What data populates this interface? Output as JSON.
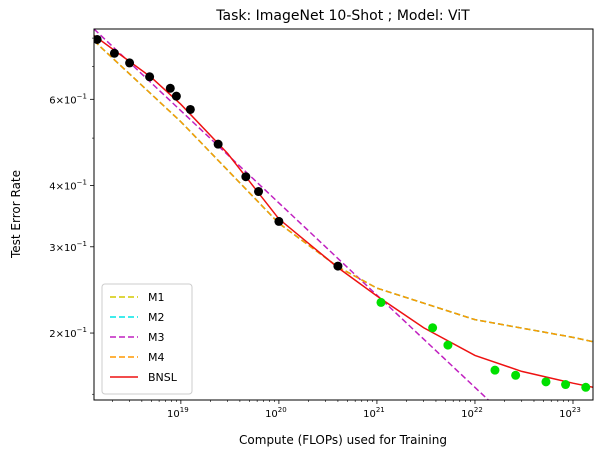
{
  "chart_data": {
    "type": "line",
    "title": "Task: ImageNet 10-Shot ; Model: ViT",
    "xlabel": "Compute (FLOPs) used for Training",
    "ylabel": "Test Error Rate",
    "x_scale": "log",
    "y_scale": "log",
    "xlim": [
      1.3e+18,
      1.6e+23
    ],
    "ylim": [
      0.146,
      0.835
    ],
    "x_ticks": [
      {
        "value": 1e+19,
        "base": "10",
        "exp": "19"
      },
      {
        "value": 1e+20,
        "base": "10",
        "exp": "20"
      },
      {
        "value": 1e+21,
        "base": "10",
        "exp": "21"
      },
      {
        "value": 1e+22,
        "base": "10",
        "exp": "22"
      },
      {
        "value": 1e+23,
        "base": "10",
        "exp": "23"
      }
    ],
    "y_ticks": [
      {
        "value": 0.2,
        "mant": "2",
        "base": "10",
        "exp": "−1"
      },
      {
        "value": 0.3,
        "mant": "3",
        "base": "10",
        "exp": "−1"
      },
      {
        "value": 0.4,
        "mant": "4",
        "base": "10",
        "exp": "−1"
      },
      {
        "value": 0.6,
        "mant": "6",
        "base": "10",
        "exp": "−1"
      }
    ],
    "grid": false,
    "legend_position": "lower-left",
    "train_points": {
      "color": "#000000",
      "x": [
        1.4e+18,
        2.1e+18,
        3e+18,
        4.8e+18,
        7.8e+18,
        9e+18,
        1.25e+19,
        2.4e+19,
        4.6e+19,
        6.2e+19,
        1e+20,
        4e+20
      ],
      "y": [
        0.795,
        0.745,
        0.712,
        0.667,
        0.632,
        0.609,
        0.572,
        0.486,
        0.417,
        0.389,
        0.338,
        0.274
      ]
    },
    "test_points": {
      "color": "#00e000",
      "x": [
        1.1e+21,
        3.7e+21,
        5.3e+21,
        1.6e+22,
        2.6e+22,
        5.3e+22,
        8.4e+22,
        1.35e+23
      ],
      "y": [
        0.231,
        0.205,
        0.189,
        0.168,
        0.164,
        0.159,
        0.157,
        0.155
      ]
    },
    "series": [
      {
        "name": "M1",
        "color": "#d4c800",
        "dash": "dashed",
        "x": [
          1.3e+18,
          1e+19,
          1e+20,
          4e+20,
          1e+21,
          1e+22,
          1e+23,
          1.6e+23
        ],
        "y": [
          0.79,
          0.54,
          0.335,
          0.273,
          0.247,
          0.213,
          0.196,
          0.192
        ],
        "legend_only": false
      },
      {
        "name": "M2",
        "color": "#00e5e5",
        "dash": "dashed",
        "x": [
          1.3e+18,
          1e+19,
          1e+20,
          4e+20,
          1e+21,
          1e+22,
          1e+23,
          1.6e+23
        ],
        "y": [
          0.79,
          0.54,
          0.335,
          0.273,
          0.247,
          0.213,
          0.196,
          0.192
        ]
      },
      {
        "name": "M3",
        "color": "#c020c0",
        "dash": "dashed",
        "x": [
          1.3e+18,
          1.37e+22
        ],
        "y": [
          0.835,
          0.146
        ]
      },
      {
        "name": "M4",
        "color": "#ff9900",
        "dash": "dashed",
        "x": [
          1.3e+18,
          1e+19,
          1e+20,
          4e+20,
          1e+21,
          1e+22,
          1e+23,
          1.6e+23
        ],
        "y": [
          0.79,
          0.54,
          0.335,
          0.273,
          0.247,
          0.213,
          0.196,
          0.192
        ]
      },
      {
        "name": "BNSL",
        "color": "#ee1111",
        "dash": "solid",
        "x": [
          1.3e+18,
          5e+18,
          1e+19,
          3e+19,
          1e+20,
          4e+20,
          1e+21,
          3e+21,
          1e+22,
          3e+22,
          1e+23,
          1.6e+23
        ],
        "y": [
          0.81,
          0.665,
          0.586,
          0.465,
          0.342,
          0.272,
          0.238,
          0.205,
          0.18,
          0.167,
          0.158,
          0.155
        ]
      }
    ]
  }
}
